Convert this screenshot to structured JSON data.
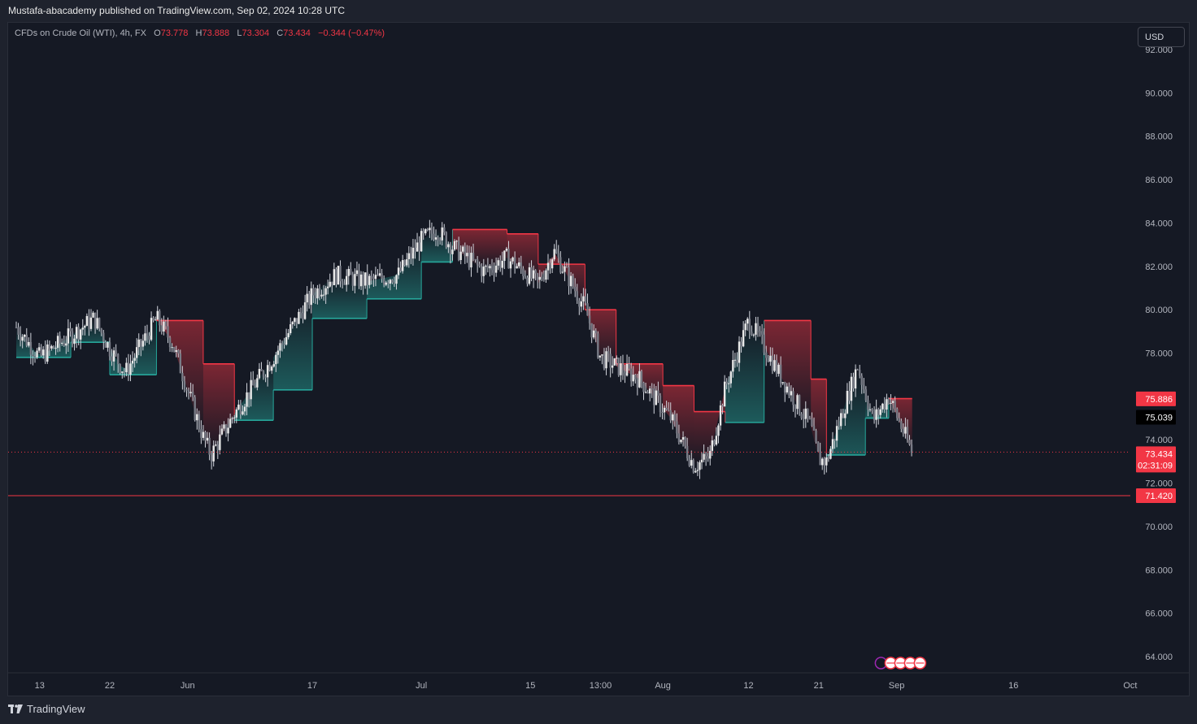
{
  "header": {
    "published": "Mustafa-abacademy published on TradingView.com, Sep 02, 2024 10:28 UTC"
  },
  "legend": {
    "symbol": "CFDs on Crude Oil (WTI), 4h, FX",
    "o_label": "O",
    "o_value": "73.778",
    "h_label": "H",
    "h_value": "73.888",
    "l_label": "L",
    "l_value": "73.304",
    "c_label": "C",
    "c_value": "73.434",
    "change": "−0.344 (−0.47%)"
  },
  "currency_button": "USD",
  "footer": {
    "brand": "TradingView"
  },
  "colors": {
    "up": "#26a69a",
    "down": "#f23645",
    "background": "#151924",
    "text": "#b2b5be"
  },
  "chart_data": {
    "type": "candlestick",
    "title": "CFDs on Crude Oil (WTI), 4h, FX",
    "y_axis": {
      "ylim": [
        62.5,
        92.5
      ],
      "ticks": [
        "92.000",
        "90.000",
        "88.000",
        "86.000",
        "84.000",
        "82.000",
        "80.000",
        "78.000",
        "76.000",
        "74.000",
        "72.000",
        "70.000",
        "68.000",
        "66.000",
        "64.000"
      ]
    },
    "x_axis": {
      "ticks": [
        "13",
        "22",
        "Jun",
        "17",
        "Jul",
        "15",
        "13:00",
        "Aug",
        "12",
        "21",
        "Sep",
        "16",
        "Oct"
      ]
    },
    "price_path": {
      "dates": [
        "May 10",
        "May 13",
        "May 17",
        "May 20",
        "May 22",
        "May 24",
        "May 28",
        "May 30",
        "Jun 3",
        "Jun 4",
        "Jun 7",
        "Jun 12",
        "Jun 17",
        "Jun 20",
        "Jun 24",
        "Jun 28",
        "Jul 1",
        "Jul 3",
        "Jul 5",
        "Jul 9",
        "Jul 12",
        "Jul 16",
        "Jul 18",
        "Jul 22",
        "Jul 24",
        "Jul 29",
        "Aug 2",
        "Aug 5",
        "Aug 7",
        "Aug 9",
        "Aug 12",
        "Aug 14",
        "Aug 16",
        "Aug 20",
        "Aug 21",
        "Aug 22",
        "Aug 26",
        "Aug 28",
        "Aug 30",
        "Sep 2"
      ],
      "close": [
        79.2,
        77.8,
        78.8,
        79.6,
        78.2,
        77.1,
        79.6,
        78.5,
        74.1,
        73.3,
        75.2,
        77.8,
        80.7,
        81.6,
        81.3,
        81.6,
        83.2,
        83.7,
        82.9,
        81.8,
        82.4,
        81.2,
        82.7,
        80.1,
        77.8,
        76.8,
        75.0,
        72.8,
        73.2,
        76.4,
        79.5,
        78.3,
        77.0,
        74.6,
        73.1,
        73.0,
        77.4,
        74.9,
        76.0,
        73.4
      ]
    },
    "trailing_band": {
      "dates": [
        "May 10",
        "May 17",
        "May 22",
        "May 28",
        "Jun 3",
        "Jun 7",
        "Jun 12",
        "Jun 17",
        "Jun 24",
        "Jul 1",
        "Jul 5",
        "Jul 12",
        "Jul 16",
        "Jul 22",
        "Jul 26",
        "Aug 1",
        "Aug 5",
        "Aug 9",
        "Aug 14",
        "Aug 20",
        "Aug 22",
        "Aug 27",
        "Aug 30",
        "Sep 2"
      ],
      "level": [
        77.8,
        78.5,
        77.0,
        79.5,
        77.5,
        74.9,
        76.3,
        79.6,
        80.5,
        82.2,
        83.7,
        83.5,
        82.1,
        80.0,
        77.5,
        76.5,
        75.3,
        74.8,
        79.5,
        76.8,
        73.3,
        75.0,
        75.9,
        75.9
      ],
      "direction": [
        "up",
        "up",
        "up",
        "down",
        "down",
        "up",
        "up",
        "up",
        "up",
        "up",
        "down",
        "down",
        "down",
        "down",
        "down",
        "down",
        "down",
        "up",
        "down",
        "down",
        "up",
        "up",
        "down",
        "down"
      ]
    },
    "price_lines": {
      "last_price": "73.434",
      "countdown": "02:31:09",
      "band_upper": "75.886",
      "crosshair": "75.039",
      "support_line": "71.420"
    }
  }
}
